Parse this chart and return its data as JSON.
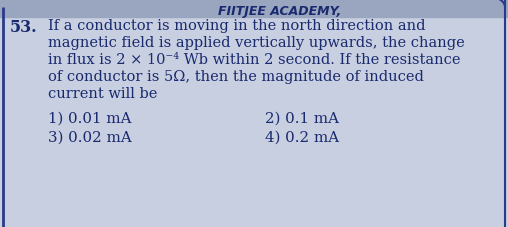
{
  "question_number": "53.",
  "question_lines": [
    "If a conductor is moving in the north direction and",
    "magnetic field is applied vertically upwards, the change",
    "in flux is 2 × 10⁻⁴ Wb within 2 second. If the resistance",
    "of conductor is 5Ω, then the magnitude of induced",
    "current will be"
  ],
  "options": [
    [
      "1) 0.01 mA",
      "2) 0.1 mA"
    ],
    [
      "3) 0.02 mA",
      "4) 0.2 mA"
    ]
  ],
  "bg_color": "#c8cfe0",
  "text_color": "#1a2a6e",
  "border_color": "#2a3a8a",
  "header_color": "#4a5a9a",
  "font_size_question": 10.5,
  "font_size_options": 10.8,
  "number_font_size": 11.5,
  "header_text": "FIITJEE ACADEMY,",
  "fig_width": 5.08,
  "fig_height": 2.27,
  "dpi": 100
}
